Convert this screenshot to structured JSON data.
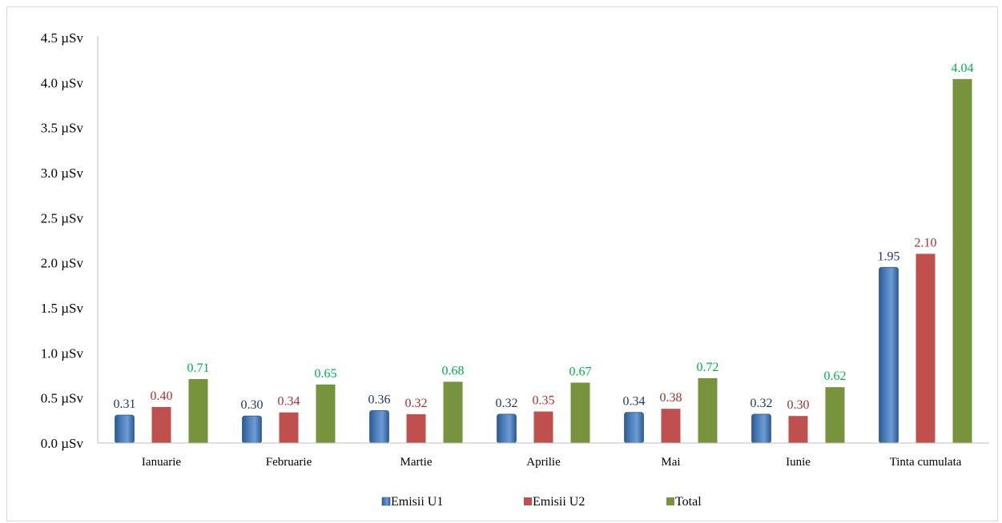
{
  "chart_data": {
    "type": "bar",
    "categories": [
      "Ianuarie",
      "Februarie",
      "Martie",
      "Aprilie",
      "Mai",
      "Iunie",
      "Tinta cumulata"
    ],
    "series": [
      {
        "name": "Emisii U1",
        "color": "#4f81bd",
        "values": [
          0.31,
          0.3,
          0.36,
          0.32,
          0.34,
          0.32,
          1.95
        ],
        "labels": [
          "0.31",
          "0.30",
          "0.36",
          "0.32",
          "0.34",
          "0.32",
          "1.95"
        ],
        "label_color": "#1f3864"
      },
      {
        "name": "Emisii U2",
        "color": "#c0504d",
        "values": [
          0.4,
          0.34,
          0.32,
          0.35,
          0.38,
          0.3,
          2.1
        ],
        "labels": [
          "0.40",
          "0.34",
          "0.32",
          "0.35",
          "0.38",
          "0.30",
          "2.10"
        ],
        "label_color": "#a5312e"
      },
      {
        "name": "Total",
        "color": "#77933c",
        "values": [
          0.71,
          0.65,
          0.68,
          0.67,
          0.72,
          0.62,
          4.04
        ],
        "labels": [
          "0.71",
          "0.65",
          "0.68",
          "0.67",
          "0.72",
          "0.62",
          "4.04"
        ],
        "label_color": "#00b050"
      }
    ],
    "y_ticks": [
      "0.0 µSv",
      "0.5 µSv",
      "1.0 µSv",
      "1.5 µSv",
      "2.0 µSv",
      "2.5 µSv",
      "3.0 µSv",
      "3.5 µSv",
      "4.0 µSv",
      "4.5 µSv"
    ],
    "ylim": [
      0,
      4.5
    ],
    "title": "",
    "xlabel": "",
    "ylabel": "",
    "grid": false,
    "legend_position": "bottom"
  }
}
